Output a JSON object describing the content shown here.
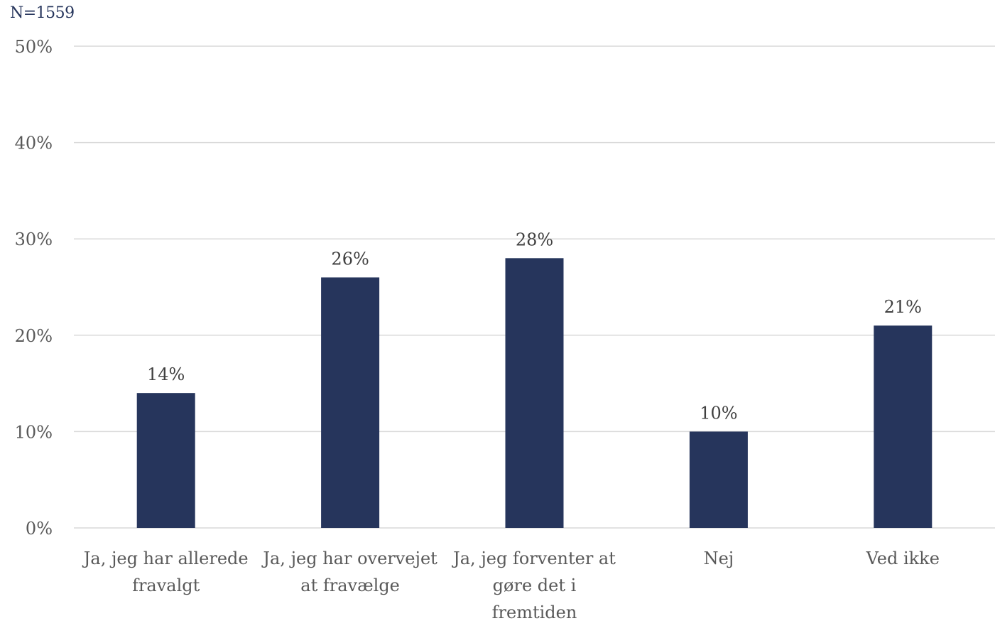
{
  "note": "N=1559",
  "colors": {
    "bar": "#26355c",
    "grid": "#d9d9d9",
    "axis_text": "#595959",
    "label_text": "#404040"
  },
  "chart_data": {
    "type": "bar",
    "categories": [
      [
        "Ja, jeg har allerede",
        "fravalgt"
      ],
      [
        "Ja, jeg har overvejet",
        "at fravælge"
      ],
      [
        "Ja, jeg forventer at",
        "gøre det i",
        "fremtiden"
      ],
      [
        "Nej"
      ],
      [
        "Ved ikke"
      ]
    ],
    "values": [
      14,
      26,
      28,
      10,
      21
    ],
    "data_labels": [
      "14%",
      "26%",
      "28%",
      "10%",
      "21%"
    ],
    "ylim": [
      0,
      50
    ],
    "yticks": [
      0,
      10,
      20,
      30,
      40,
      50
    ],
    "ytick_labels": [
      "0%",
      "10%",
      "20%",
      "30%",
      "40%",
      "50%"
    ],
    "grid": true,
    "title": "",
    "xlabel": "",
    "ylabel": ""
  }
}
